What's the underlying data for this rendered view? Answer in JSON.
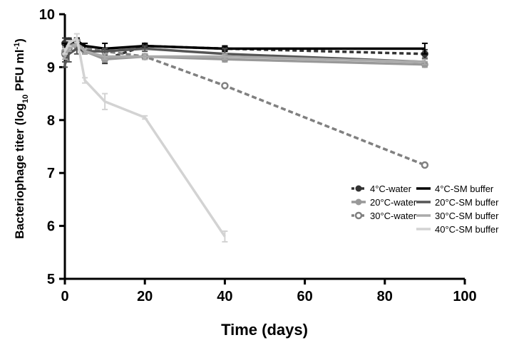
{
  "chart_data": {
    "type": "line",
    "xlabel": "Time (days)",
    "ylabel_main": "Bacteriophage titer (log",
    "ylabel_sub": "10",
    "ylabel_unit": " PFU ml",
    "ylabel_sup": "-1",
    "ylabel_close": ")",
    "xlim": [
      0,
      100
    ],
    "ylim": [
      5,
      10
    ],
    "xticks": [
      "0",
      "20",
      "40",
      "60",
      "80",
      "100"
    ],
    "yticks": [
      "5",
      "6",
      "7",
      "8",
      "9",
      "10"
    ],
    "grid": false,
    "legend_placement": "lower-right",
    "series": [
      {
        "name": "4°C-water",
        "color": "#333333",
        "dash": "6,4",
        "marker": "filled",
        "points": [
          [
            0,
            9.45
          ],
          [
            1,
            9.5
          ],
          [
            3,
            9.45
          ],
          [
            5,
            9.35
          ],
          [
            10,
            9.15
          ],
          [
            20,
            9.4
          ],
          [
            40,
            9.35
          ],
          [
            90,
            9.25
          ]
        ],
        "err": [
          0.1,
          0.05,
          0.08,
          0.05,
          0.08,
          0.05,
          0.05,
          0.08
        ]
      },
      {
        "name": "20°C-water",
        "color": "#999999",
        "dash": "",
        "marker": "filled",
        "points": [
          [
            0,
            9.3
          ],
          [
            1,
            9.4
          ],
          [
            3,
            9.4
          ],
          [
            5,
            9.3
          ],
          [
            10,
            9.15
          ],
          [
            20,
            9.2
          ],
          [
            40,
            9.15
          ],
          [
            90,
            9.05
          ]
        ],
        "err": [
          0.08,
          0.05,
          0.05,
          0.05,
          0.05,
          0.05,
          0.05,
          0.05
        ]
      },
      {
        "name": "30°C-water",
        "color": "#808080",
        "dash": "7,4",
        "marker": "open",
        "points": [
          [
            0,
            9.25
          ],
          [
            1,
            9.35
          ],
          [
            3,
            9.5
          ],
          [
            5,
            9.35
          ],
          [
            10,
            9.3
          ],
          [
            20,
            9.2
          ],
          [
            40,
            8.65
          ],
          [
            90,
            7.15
          ]
        ],
        "err": [
          0.05,
          0.05,
          0.05,
          0.05,
          0.05,
          0.05,
          0.03,
          0.03
        ]
      },
      {
        "name": "4°C-SM buffer",
        "color": "#000000",
        "dash": "",
        "marker": "none",
        "points": [
          [
            0,
            9.4
          ],
          [
            1,
            9.45
          ],
          [
            3,
            9.5
          ],
          [
            5,
            9.4
          ],
          [
            10,
            9.35
          ],
          [
            20,
            9.4
          ],
          [
            40,
            9.35
          ],
          [
            90,
            9.35
          ]
        ],
        "err": [
          0.05,
          0.05,
          0.05,
          0.05,
          0.1,
          0.05,
          0.05,
          0.1
        ]
      },
      {
        "name": "20°C-SM buffer",
        "color": "#555555",
        "dash": "",
        "marker": "none",
        "points": [
          [
            0,
            9.05
          ],
          [
            1,
            9.25
          ],
          [
            3,
            9.35
          ],
          [
            5,
            9.3
          ],
          [
            10,
            9.3
          ],
          [
            20,
            9.35
          ],
          [
            40,
            9.25
          ],
          [
            90,
            9.1
          ]
        ],
        "err": [
          0.05,
          0.15,
          0.1,
          0.05,
          0.05,
          0.05,
          0.1,
          0.05
        ]
      },
      {
        "name": "30°C-SM buffer",
        "color": "#aaaaaa",
        "dash": "",
        "marker": "none",
        "points": [
          [
            0,
            9.2
          ],
          [
            1,
            9.35
          ],
          [
            3,
            9.45
          ],
          [
            5,
            9.3
          ],
          [
            10,
            9.2
          ],
          [
            20,
            9.2
          ],
          [
            40,
            9.2
          ],
          [
            90,
            9.1
          ]
        ],
        "err": [
          0.05,
          0.05,
          0.05,
          0.05,
          0.05,
          0.05,
          0.05,
          0.05
        ]
      },
      {
        "name": "40°C-SM buffer",
        "color": "#d3d3d3",
        "dash": "",
        "marker": "none",
        "points": [
          [
            0,
            9.3
          ],
          [
            1,
            9.45
          ],
          [
            3,
            9.55
          ],
          [
            5,
            8.75
          ],
          [
            10,
            8.35
          ],
          [
            20,
            8.05
          ],
          [
            40,
            5.8
          ]
        ],
        "err": [
          0.05,
          0.05,
          0.08,
          0.05,
          0.15,
          0.03,
          0.1
        ]
      }
    ]
  }
}
